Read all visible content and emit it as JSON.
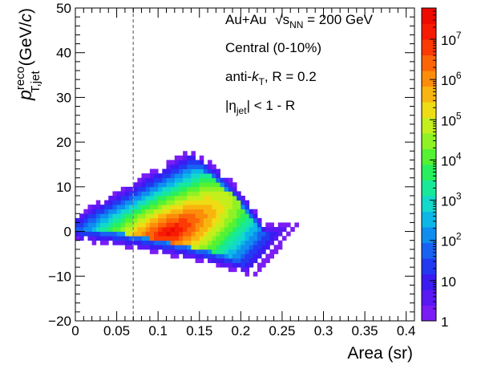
{
  "chart_data": {
    "type": "heatmap",
    "title": "",
    "xlabel": "Area (sr)",
    "ylabel_main": "p",
    "ylabel_sup": "reco",
    "ylabel_sub": "T,jet",
    "ylabel_unit_open": "(GeV/",
    "ylabel_unit_var": "c",
    "ylabel_unit_close": ")",
    "xlim": [
      0,
      0.41
    ],
    "ylim": [
      -20,
      50
    ],
    "x_ticks": [
      0,
      0.05,
      0.1,
      0.15,
      0.2,
      0.25,
      0.3,
      0.35,
      0.4
    ],
    "x_tick_labels": [
      "0",
      "0.05",
      "0.1",
      "0.15",
      "0.2",
      "0.25",
      "0.3",
      "0.35",
      "0.4"
    ],
    "y_ticks": [
      -20,
      -10,
      0,
      10,
      20,
      30,
      40,
      50
    ],
    "y_tick_labels": [
      "−20",
      "−10",
      "0",
      "10",
      "20",
      "30",
      "40",
      "50"
    ],
    "z_scale": "log",
    "zlim": [
      1,
      60000000
    ],
    "z_ticks": [
      1,
      10,
      100,
      1000,
      10000,
      100000,
      1000000,
      10000000
    ],
    "z_tick_labels": [
      {
        "base": "1",
        "exp": ""
      },
      {
        "base": "10",
        "exp": ""
      },
      {
        "base": "10",
        "exp": "2"
      },
      {
        "base": "10",
        "exp": "3"
      },
      {
        "base": "10",
        "exp": "4"
      },
      {
        "base": "10",
        "exp": "5"
      },
      {
        "base": "10",
        "exp": "6"
      },
      {
        "base": "10",
        "exp": "7"
      }
    ],
    "cut_line": {
      "x": 0.07,
      "style": "dashed"
    },
    "annotations": [
      {
        "id": "collision",
        "text": "Au+Au √s_NN = 200 GeV",
        "parts": [
          "Au+Au ",
          "s",
          "NN",
          " = 200 GeV"
        ]
      },
      {
        "id": "centrality",
        "text": "Central (0-10%)"
      },
      {
        "id": "algo",
        "text": "anti-k_T, R = 0.2",
        "parts": [
          "anti-",
          "k",
          "T",
          ", R = 0.2"
        ]
      },
      {
        "id": "eta",
        "text": "|η_jet| < 1 - R",
        "parts": [
          "|η",
          "jet",
          "| < 1 - R"
        ]
      }
    ],
    "distribution": {
      "description_fields": [
        "peak_x",
        "peak_y",
        "bin_dx",
        "bin_dy"
      ],
      "peak_x": 0.115,
      "peak_y": 0,
      "bin_dx": 0.005,
      "bin_dy": 1
    }
  }
}
